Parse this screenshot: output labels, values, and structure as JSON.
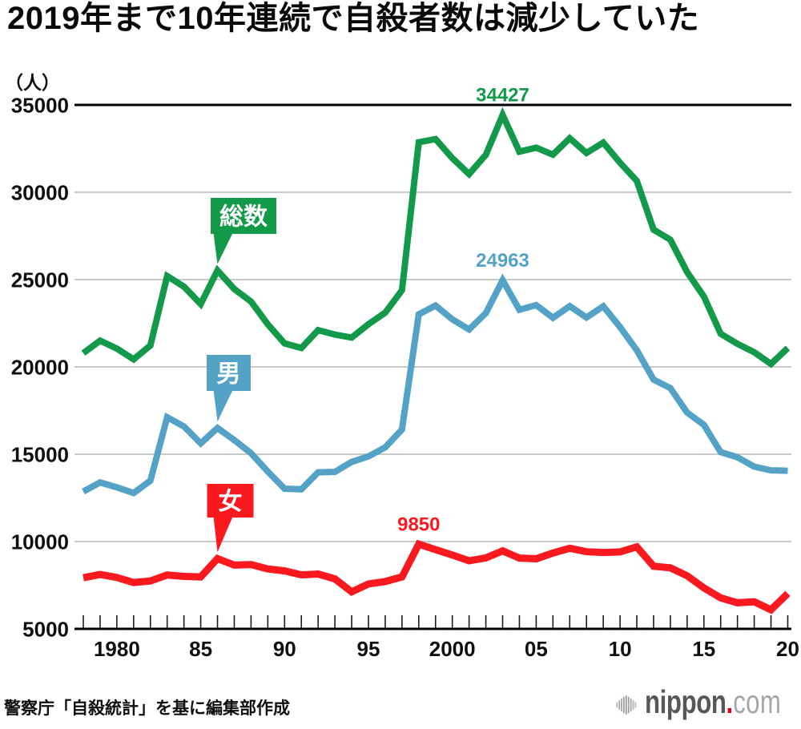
{
  "title": "2019年まで10年連続で自殺者数は減少していた",
  "y_axis_unit": "（人）",
  "source_note": "警察庁「自殺統計」を基に編集部作成",
  "logo": {
    "brand": "nippon",
    "dot": ".",
    "tld": "com"
  },
  "colors": {
    "total": "#12994a",
    "male": "#54a3c6",
    "female": "#f9191f",
    "grid": "#c9c9c9",
    "axis": "#000000",
    "text": "#0f0f0f"
  },
  "chart_data": {
    "type": "line",
    "title": "2019年まで10年連続で自殺者数は減少していた",
    "ylabel": "（人）",
    "ylim": [
      5000,
      35000
    ],
    "y_ticks": [
      35000,
      30000,
      25000,
      20000,
      15000,
      10000,
      5000
    ],
    "grid": true,
    "legend_position": "inline-bubbles",
    "x": [
      1978,
      1979,
      1980,
      1981,
      1982,
      1983,
      1984,
      1985,
      1986,
      1987,
      1988,
      1989,
      1990,
      1991,
      1992,
      1993,
      1994,
      1995,
      1996,
      1997,
      1998,
      1999,
      2000,
      2001,
      2002,
      2003,
      2004,
      2005,
      2006,
      2007,
      2008,
      2009,
      2010,
      2011,
      2012,
      2013,
      2014,
      2015,
      2016,
      2017,
      2018,
      2019,
      2020
    ],
    "x_tick_labels": [
      {
        "year": 1980,
        "label": "1980"
      },
      {
        "year": 1985,
        "label": "85"
      },
      {
        "year": 1990,
        "label": "90"
      },
      {
        "year": 1995,
        "label": "95"
      },
      {
        "year": 2000,
        "label": "2000"
      },
      {
        "year": 2005,
        "label": "05"
      },
      {
        "year": 2010,
        "label": "10"
      },
      {
        "year": 2015,
        "label": "15"
      },
      {
        "year": 2020,
        "label": "20"
      }
    ],
    "series": [
      {
        "key": "total",
        "name": "総数",
        "color": "#12994a",
        "bubble_anchor_year": 1986,
        "peak": {
          "year": 2003,
          "label": "34427"
        },
        "values": [
          20788,
          21503,
          21048,
          20434,
          21228,
          25202,
          24596,
          23599,
          25524,
          24460,
          23742,
          22436,
          21346,
          21084,
          22104,
          21851,
          21679,
          22445,
          23104,
          24391,
          32863,
          33048,
          31957,
          31042,
          32143,
          34427,
          32325,
          32552,
          32155,
          33093,
          32249,
          32845,
          31690,
          30651,
          27858,
          27283,
          25427,
          24025,
          21897,
          21321,
          20840,
          20169,
          21081
        ]
      },
      {
        "key": "male",
        "name": "男",
        "color": "#54a3c6",
        "bubble_anchor_year": 1986,
        "peak": {
          "year": 2003,
          "label": "24963"
        },
        "values": [
          12859,
          13386,
          13106,
          12781,
          13486,
          17116,
          16590,
          15624,
          16499,
          15809,
          15059,
          14007,
          13026,
          12992,
          13963,
          13990,
          14560,
          14874,
          15393,
          16416,
          23013,
          23512,
          22727,
          22144,
          23080,
          24963,
          23272,
          23540,
          22813,
          23478,
          22831,
          23472,
          22283,
          20955,
          19273,
          18787,
          17386,
          16681,
          15121,
          14826,
          14290,
          14078,
          14055
        ]
      },
      {
        "key": "female",
        "name": "女",
        "color": "#f9191f",
        "bubble_anchor_year": 1986,
        "peak": {
          "year": 1998,
          "label": "9850"
        },
        "values": [
          7929,
          8117,
          7942,
          7653,
          7742,
          8086,
          8006,
          7975,
          9025,
          8651,
          8683,
          8429,
          8320,
          8092,
          8141,
          7861,
          7119,
          7571,
          7711,
          7975,
          9850,
          9536,
          9230,
          8898,
          9063,
          9464,
          9053,
          9012,
          9342,
          9615,
          9418,
          9373,
          9407,
          9696,
          8585,
          8496,
          8041,
          7344,
          6776,
          6495,
          6550,
          6091,
          7026
        ]
      }
    ]
  }
}
